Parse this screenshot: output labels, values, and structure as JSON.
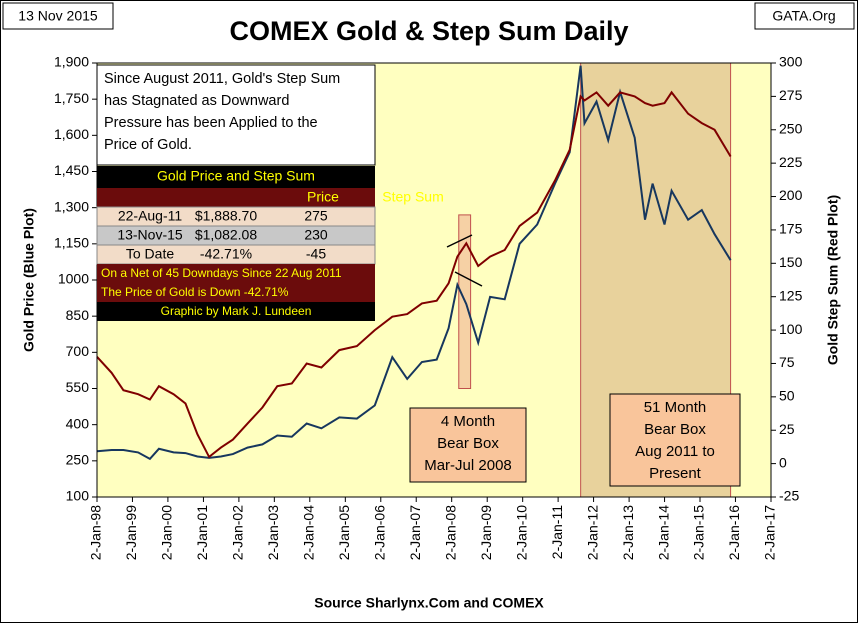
{
  "chart_data": {
    "type": "line",
    "title": "COMEX Gold & Step Sum Daily",
    "date_label": "13 Nov 2015",
    "source_tag": "GATA.Org",
    "ylabel": "Gold Price   (Blue Plot)",
    "y2label": "Gold Step Sum   (Red Plot)",
    "xlabel": "Source Sharlynx.Com and COMEX",
    "note": [
      "Since August  2011, Gold's Step Sum",
      "has Stagnated as Downward",
      "Pressure has been Applied to the",
      "Price of Gold."
    ],
    "boxes": [
      {
        "start": "2008-03-15",
        "end": "2008-07-15",
        "ylim": [
          550,
          1270
        ],
        "label": [
          "4 Month",
          "Bear Box",
          "Mar-Jul 2008"
        ]
      },
      {
        "start": "2011-08-22",
        "end": "2015-11-13",
        "label": [
          "51 Month",
          "Bear Box",
          "Aug 2011 to",
          "Present"
        ]
      }
    ],
    "table": {
      "title": "Gold Price and Step Sum",
      "headers": [
        "Price",
        "Step Sum"
      ],
      "rows": [
        [
          "22-Aug-11",
          "$1,888.70",
          "275"
        ],
        [
          "13-Nov-15",
          "$1,082.08",
          "230"
        ],
        [
          "To Date",
          "-42.71%",
          "-45"
        ]
      ],
      "footer": [
        "On a Net of 45 Downdays Since 22 Aug 2011",
        "The Price of Gold is Down -42.71%",
        "Graphic by Mark J. Lundeen"
      ]
    },
    "x": [
      "1998-01-02",
      "1998-06-01",
      "1998-10-01",
      "1999-03-01",
      "1999-07-01",
      "1999-10-01",
      "2000-03-01",
      "2000-07-01",
      "2000-11-01",
      "2001-03-01",
      "2001-07-01",
      "2001-11-01",
      "2002-04-01",
      "2002-09-01",
      "2003-02-01",
      "2003-07-01",
      "2003-12-01",
      "2004-05-01",
      "2004-11-01",
      "2005-05-01",
      "2005-11-01",
      "2006-05-01",
      "2006-10-01",
      "2007-03-01",
      "2007-08-01",
      "2007-12-01",
      "2008-03-01",
      "2008-06-01",
      "2008-10-01",
      "2009-02-01",
      "2009-07-01",
      "2009-12-01",
      "2010-06-01",
      "2010-12-01",
      "2011-05-01",
      "2011-08-22",
      "2011-10-01",
      "2012-02-01",
      "2012-06-01",
      "2012-10-01",
      "2013-03-01",
      "2013-06-15",
      "2013-09-01",
      "2014-01-01",
      "2014-03-15",
      "2014-09-01",
      "2015-01-20",
      "2015-06-01",
      "2015-11-13"
    ],
    "series": [
      {
        "name": "Gold Price",
        "color": "#17375e",
        "values": [
          290,
          295,
          295,
          285,
          258,
          300,
          285,
          282,
          268,
          262,
          268,
          278,
          305,
          318,
          355,
          350,
          405,
          385,
          430,
          425,
          480,
          680,
          590,
          660,
          670,
          800,
          980,
          900,
          740,
          930,
          920,
          1150,
          1230,
          1400,
          1530,
          1888.7,
          1650,
          1740,
          1580,
          1780,
          1590,
          1250,
          1400,
          1230,
          1370,
          1250,
          1290,
          1190,
          1082.08
        ]
      },
      {
        "name": "Step Sum",
        "color": "#7f0000",
        "axis": "y2",
        "values": [
          80,
          68,
          55,
          52,
          48,
          58,
          52,
          45,
          22,
          5,
          12,
          18,
          30,
          42,
          58,
          60,
          75,
          72,
          85,
          88,
          100,
          110,
          112,
          120,
          122,
          135,
          155,
          165,
          148,
          155,
          160,
          178,
          188,
          212,
          235,
          275,
          272,
          278,
          268,
          278,
          275,
          270,
          268,
          270,
          278,
          262,
          255,
          250,
          230
        ]
      }
    ],
    "xlim": [
      "1998-01-02",
      "2017-01-02"
    ],
    "xticks": [
      {
        "value": "1998-01-02",
        "label": "2-Jan-98"
      },
      {
        "value": "1999-01-02",
        "label": "2-Jan-99"
      },
      {
        "value": "2000-01-02",
        "label": "2-Jan-00"
      },
      {
        "value": "2001-01-02",
        "label": "2-Jan-01"
      },
      {
        "value": "2002-01-02",
        "label": "2-Jan-02"
      },
      {
        "value": "2003-01-02",
        "label": "2-Jan-03"
      },
      {
        "value": "2004-01-02",
        "label": "2-Jan-04"
      },
      {
        "value": "2005-01-02",
        "label": "2-Jan-05"
      },
      {
        "value": "2006-01-02",
        "label": "2-Jan-06"
      },
      {
        "value": "2007-01-02",
        "label": "2-Jan-07"
      },
      {
        "value": "2008-01-02",
        "label": "2-Jan-08"
      },
      {
        "value": "2009-01-02",
        "label": "2-Jan-09"
      },
      {
        "value": "2010-01-02",
        "label": "2-Jan-10"
      },
      {
        "value": "2011-01-02",
        "label": "2-Jan-11"
      },
      {
        "value": "2012-01-02",
        "label": "2-Jan-12"
      },
      {
        "value": "2013-01-02",
        "label": "2-Jan-13"
      },
      {
        "value": "2014-01-02",
        "label": "2-Jan-14"
      },
      {
        "value": "2015-01-02",
        "label": "2-Jan-15"
      },
      {
        "value": "2016-01-02",
        "label": "2-Jan-16"
      },
      {
        "value": "2017-01-02",
        "label": "2-Jan-17"
      }
    ],
    "ylim": [
      100,
      1900
    ],
    "yticks": [
      100,
      250,
      400,
      550,
      700,
      850,
      1000,
      {
        "value": 1150,
        "label": "1,150"
      },
      {
        "value": 1300,
        "label": "1,300"
      },
      {
        "value": 1450,
        "label": "1,450"
      },
      {
        "value": 1600,
        "label": "1,600"
      },
      {
        "value": 1750,
        "label": "1,750"
      },
      {
        "value": 1900,
        "label": "1,900"
      }
    ],
    "y2lim": [
      -25,
      300
    ],
    "y2ticks": [
      -25,
      0,
      25,
      50,
      75,
      100,
      125,
      150,
      175,
      200,
      225,
      250,
      275,
      300
    ],
    "background": "#ffffc0"
  }
}
